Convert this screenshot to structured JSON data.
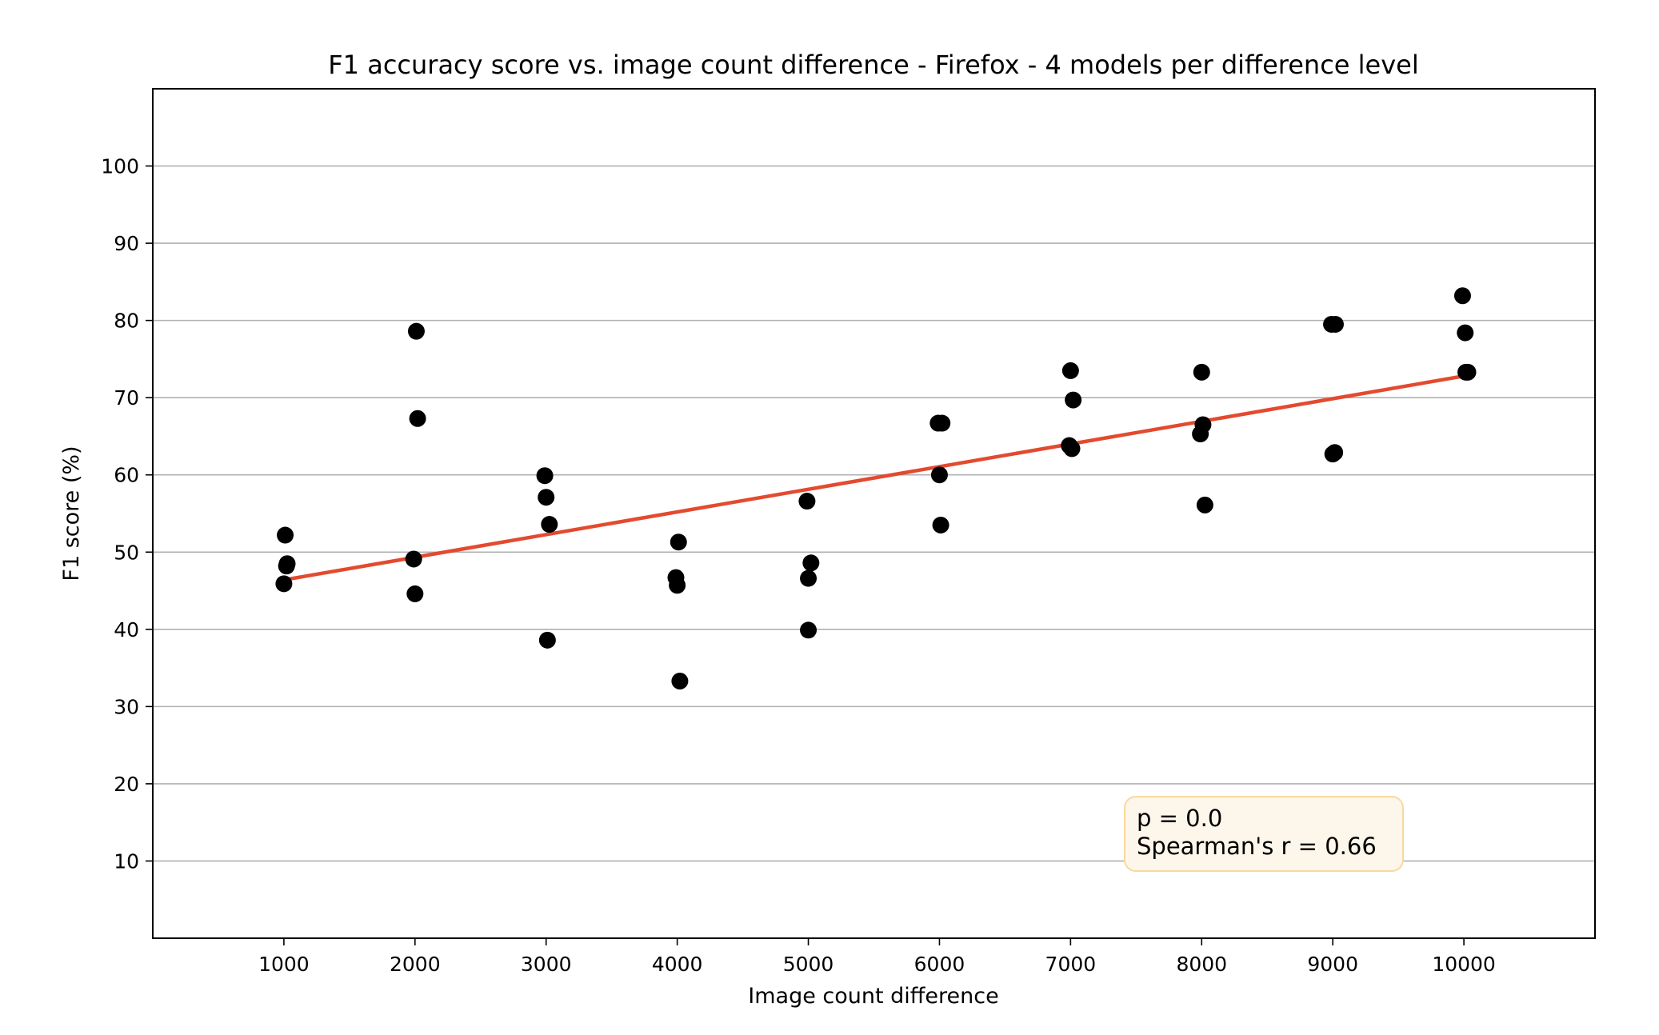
{
  "chart_data": {
    "type": "scatter",
    "title": "F1 accuracy score vs. image count difference - Firefox - 4 models per difference level",
    "xlabel": "Image count difference",
    "ylabel": "F1 score (%)",
    "xlim": [
      0,
      11000
    ],
    "ylim": [
      0,
      110
    ],
    "xticks": [
      1000,
      2000,
      3000,
      4000,
      5000,
      6000,
      7000,
      8000,
      9000,
      10000
    ],
    "yticks": [
      10,
      20,
      30,
      40,
      50,
      60,
      70,
      80,
      90,
      100
    ],
    "grid": "horizontal",
    "colors": {
      "points": "#000000",
      "trend": "#e34a2f",
      "box_fill": "#fdf6ea",
      "box_edge": "#f7d9a0",
      "grid": "#b0b0b0"
    },
    "points": [
      {
        "x": 1000,
        "y": 45.9
      },
      {
        "x": 1010,
        "y": 52.2
      },
      {
        "x": 1020,
        "y": 48.2
      },
      {
        "x": 1025,
        "y": 48.5
      },
      {
        "x": 1990,
        "y": 49.1
      },
      {
        "x": 2000,
        "y": 44.6
      },
      {
        "x": 2010,
        "y": 78.6
      },
      {
        "x": 2020,
        "y": 67.3
      },
      {
        "x": 2990,
        "y": 59.9
      },
      {
        "x": 3000,
        "y": 57.1
      },
      {
        "x": 3010,
        "y": 38.6
      },
      {
        "x": 3025,
        "y": 53.6
      },
      {
        "x": 3990,
        "y": 46.7
      },
      {
        "x": 4000,
        "y": 45.7
      },
      {
        "x": 4010,
        "y": 51.3
      },
      {
        "x": 4020,
        "y": 33.3
      },
      {
        "x": 4990,
        "y": 56.6
      },
      {
        "x": 5000,
        "y": 46.6
      },
      {
        "x": 5000,
        "y": 39.9
      },
      {
        "x": 5020,
        "y": 48.6
      },
      {
        "x": 5990,
        "y": 66.7
      },
      {
        "x": 6000,
        "y": 60.0
      },
      {
        "x": 6010,
        "y": 53.5
      },
      {
        "x": 6020,
        "y": 66.7
      },
      {
        "x": 6990,
        "y": 63.8
      },
      {
        "x": 7000,
        "y": 73.5
      },
      {
        "x": 7010,
        "y": 63.4
      },
      {
        "x": 7020,
        "y": 69.7
      },
      {
        "x": 7990,
        "y": 65.3
      },
      {
        "x": 8000,
        "y": 73.3
      },
      {
        "x": 8010,
        "y": 66.5
      },
      {
        "x": 8025,
        "y": 56.1
      },
      {
        "x": 8990,
        "y": 79.5
      },
      {
        "x": 9000,
        "y": 62.7
      },
      {
        "x": 9015,
        "y": 62.9
      },
      {
        "x": 9020,
        "y": 79.5
      },
      {
        "x": 9990,
        "y": 83.2
      },
      {
        "x": 10010,
        "y": 78.4
      },
      {
        "x": 10015,
        "y": 73.3
      },
      {
        "x": 10030,
        "y": 73.3
      }
    ],
    "trend_line": {
      "x": [
        1000,
        10000
      ],
      "y": [
        46.4,
        72.8
      ]
    },
    "annotation": {
      "lines": [
        "p = 0.0",
        "Spearman's r = 0.66"
      ],
      "placement": "lower-right"
    }
  }
}
